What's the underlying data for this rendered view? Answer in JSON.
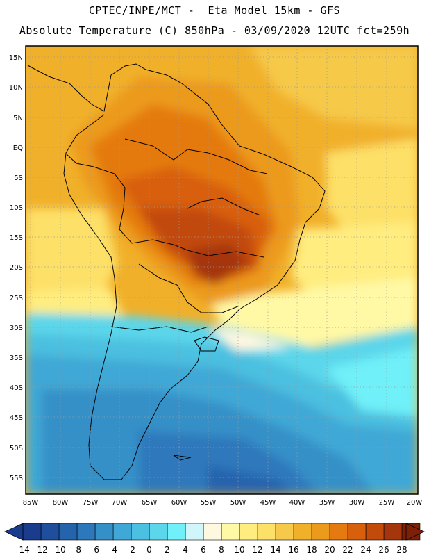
{
  "header": {
    "line1": "CPTEC/INPE/MCT -  Eta Model 15km - GFS",
    "line2": "Absolute Temperature (C) 850hPa - 03/09/2020 12UTC fct=259h"
  },
  "axes": {
    "lat_labels": [
      "15N",
      "10N",
      "5N",
      "EQ",
      "5S",
      "10S",
      "15S",
      "20S",
      "25S",
      "30S",
      "35S",
      "40S",
      "45S",
      "50S",
      "55S"
    ],
    "lon_labels": [
      "85W",
      "80W",
      "75W",
      "70W",
      "65W",
      "60W",
      "55W",
      "50W",
      "45W",
      "40W",
      "35W",
      "30W",
      "25W",
      "20W"
    ]
  },
  "legend": {
    "levels": [
      "-14",
      "-12",
      "-10",
      "-8",
      "-6",
      "-4",
      "-2",
      "0",
      "2",
      "4",
      "6",
      "8",
      "10",
      "12",
      "14",
      "16",
      "18",
      "20",
      "22",
      "24",
      "26",
      "28"
    ],
    "colors": [
      "#1a3c8c",
      "#1f4e9c",
      "#2563ad",
      "#2d78bb",
      "#3690c8",
      "#40a8d6",
      "#4cc0e0",
      "#5cd6ea",
      "#70f0f8",
      "#d0f6fb",
      "#fff8e0",
      "#fff9a6",
      "#ffed80",
      "#fde067",
      "#f6c94a",
      "#f1b02a",
      "#ec9a1c",
      "#e47a10",
      "#d85f0c",
      "#c24a0a",
      "#a5360b",
      "#7d2008"
    ],
    "low_color": "#1a3c8c",
    "high_color": "#7d2008"
  }
}
